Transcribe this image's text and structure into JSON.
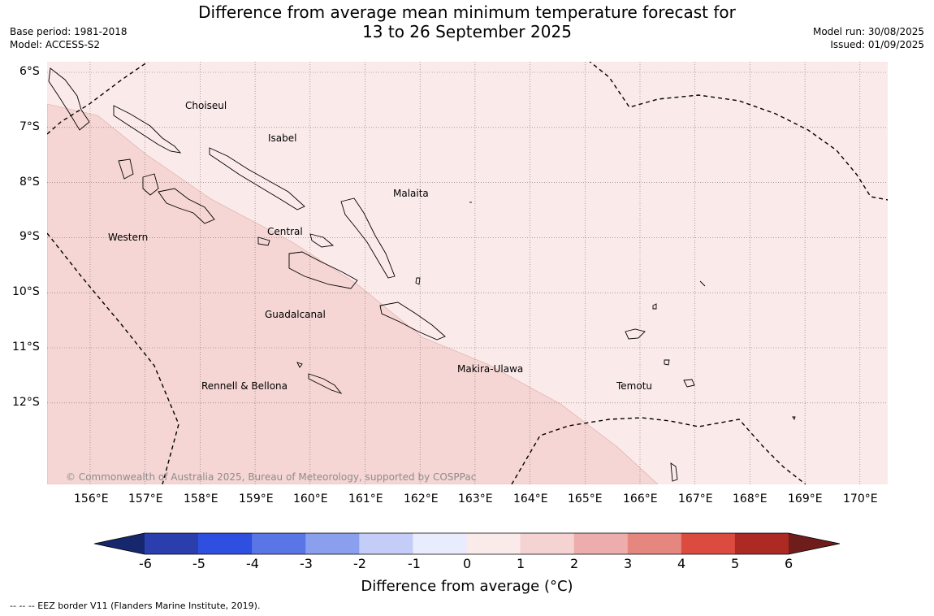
{
  "title": {
    "line1": "Difference from average mean minimum temperature forecast for",
    "line2": "13 to 26 September 2025"
  },
  "meta_left": {
    "base_period": "Base period: 1981-2018",
    "model": "Model: ACCESS-S2"
  },
  "meta_right": {
    "model_run": "Model run: 30/08/2025",
    "issued": "Issued: 01/09/2025"
  },
  "map": {
    "lat_labels": [
      "6°S",
      "7°S",
      "8°S",
      "9°S",
      "10°S",
      "11°S",
      "12°S"
    ],
    "lon_labels": [
      "156°E",
      "157°E",
      "158°E",
      "159°E",
      "160°E",
      "161°E",
      "162°E",
      "163°E",
      "164°E",
      "165°E",
      "166°E",
      "167°E",
      "168°E",
      "169°E",
      "170°E"
    ],
    "regions": [
      "Choiseul",
      "Isabel",
      "Malaita",
      "Western",
      "Central",
      "Guadalcanal",
      "Makira-Ulawa",
      "Rennell & Bellona",
      "Temotu"
    ],
    "shading": {
      "upper_zone": "0 to 1",
      "lower_zone": "1 to 2"
    },
    "credit": "© Commonwealth of Australia 2025, Bureau of Meteorology, supported by COSPPac"
  },
  "colorbar": {
    "title": "Difference from average (°C)",
    "ticks": [
      "-6",
      "-5",
      "-4",
      "-3",
      "-2",
      "-1",
      "0",
      "1",
      "2",
      "3",
      "4",
      "5",
      "6"
    ],
    "colors": [
      "#2a3fad",
      "#2f4fe0",
      "#5a76e6",
      "#8a9fee",
      "#c4cdf7",
      "#e8ecfd",
      "#fbeaea",
      "#f5d3d3",
      "#eeadad",
      "#e5877f",
      "#dc4b40",
      "#ac2a23"
    ],
    "under_color": "#17276e",
    "over_color": "#6e1d1a"
  },
  "footer": "--  --  -- EEZ border V11 (Flanders Marine Institute, 2019)."
}
